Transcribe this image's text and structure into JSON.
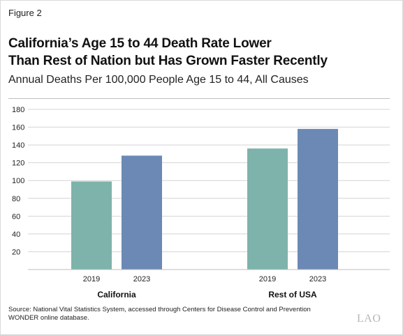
{
  "figure_label": "Figure 2",
  "title_line1": "California’s Age 15 to 44 Death Rate Lower",
  "title_line2": "Than Rest of Nation but Has Grown Faster Recently",
  "subtitle": "Annual Deaths Per 100,000 People Age 15 to 44, All Causes",
  "source_line1": "Source: National Vital Statistics System, accessed through Centers for Disease Control and Prevention",
  "source_line2": "WONDER online database.",
  "logo_text": "LAO",
  "colors": {
    "2019": "#7db3aa",
    "2023": "#6b89b4"
  },
  "chart_data": {
    "type": "bar",
    "title": "California’s Age 15 to 44 Death Rate Lower Than Rest of Nation but Has Grown Faster Recently",
    "subtitle": "Annual Deaths Per 100,000 People Age 15 to 44, All Causes",
    "categories": [
      "California",
      "Rest of USA"
    ],
    "series": [
      {
        "name": "2019",
        "values": [
          99,
          136
        ]
      },
      {
        "name": "2023",
        "values": [
          128,
          158
        ]
      }
    ],
    "ylim": [
      0,
      180
    ],
    "yticks": [
      20,
      40,
      60,
      80,
      100,
      120,
      140,
      160,
      180
    ],
    "grid": true,
    "legend": "none"
  }
}
